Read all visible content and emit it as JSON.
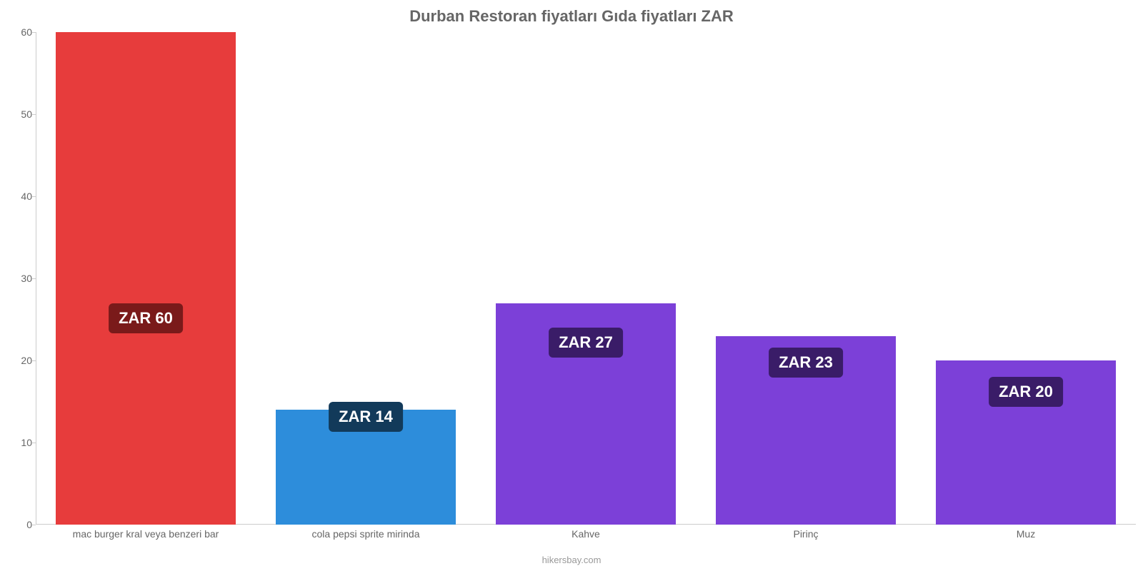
{
  "chart": {
    "type": "bar",
    "title": "Durban Restoran fiyatları Gıda fiyatları ZAR",
    "title_color": "#666666",
    "title_fontsize": 22,
    "background_color": "#ffffff",
    "ylim_min": 0,
    "ylim_max": 60,
    "ytick_step": 10,
    "yticks": [
      0,
      10,
      20,
      30,
      40,
      50,
      60
    ],
    "axis_line_color": "#cccccc",
    "label_color": "#666666",
    "label_fontsize": 14,
    "bar_width_pct": 82,
    "categories": [
      "mac burger kral veya benzeri bar",
      "cola pepsi sprite mirinda",
      "Kahve",
      "Pirinç",
      "Muz"
    ],
    "values": [
      60,
      14,
      27,
      23,
      20
    ],
    "bar_colors": [
      "#e73c3c",
      "#2d8ddb",
      "#7c40d8",
      "#7c40d8",
      "#7c40d8"
    ],
    "value_labels": [
      "ZAR 60",
      "ZAR 14",
      "ZAR 27",
      "ZAR 23",
      "ZAR 20"
    ],
    "value_label_bg": [
      "#7a1a1a",
      "#123a5a",
      "#3a1c68",
      "#3a1c68",
      "#3a1c68"
    ],
    "value_label_color": "#ffffff",
    "value_label_fontsize": 22,
    "value_label_y_offsets_pct": [
      55,
      75,
      60,
      64,
      70
    ],
    "attribution": "hikersbay.com",
    "attribution_color": "#999999"
  }
}
